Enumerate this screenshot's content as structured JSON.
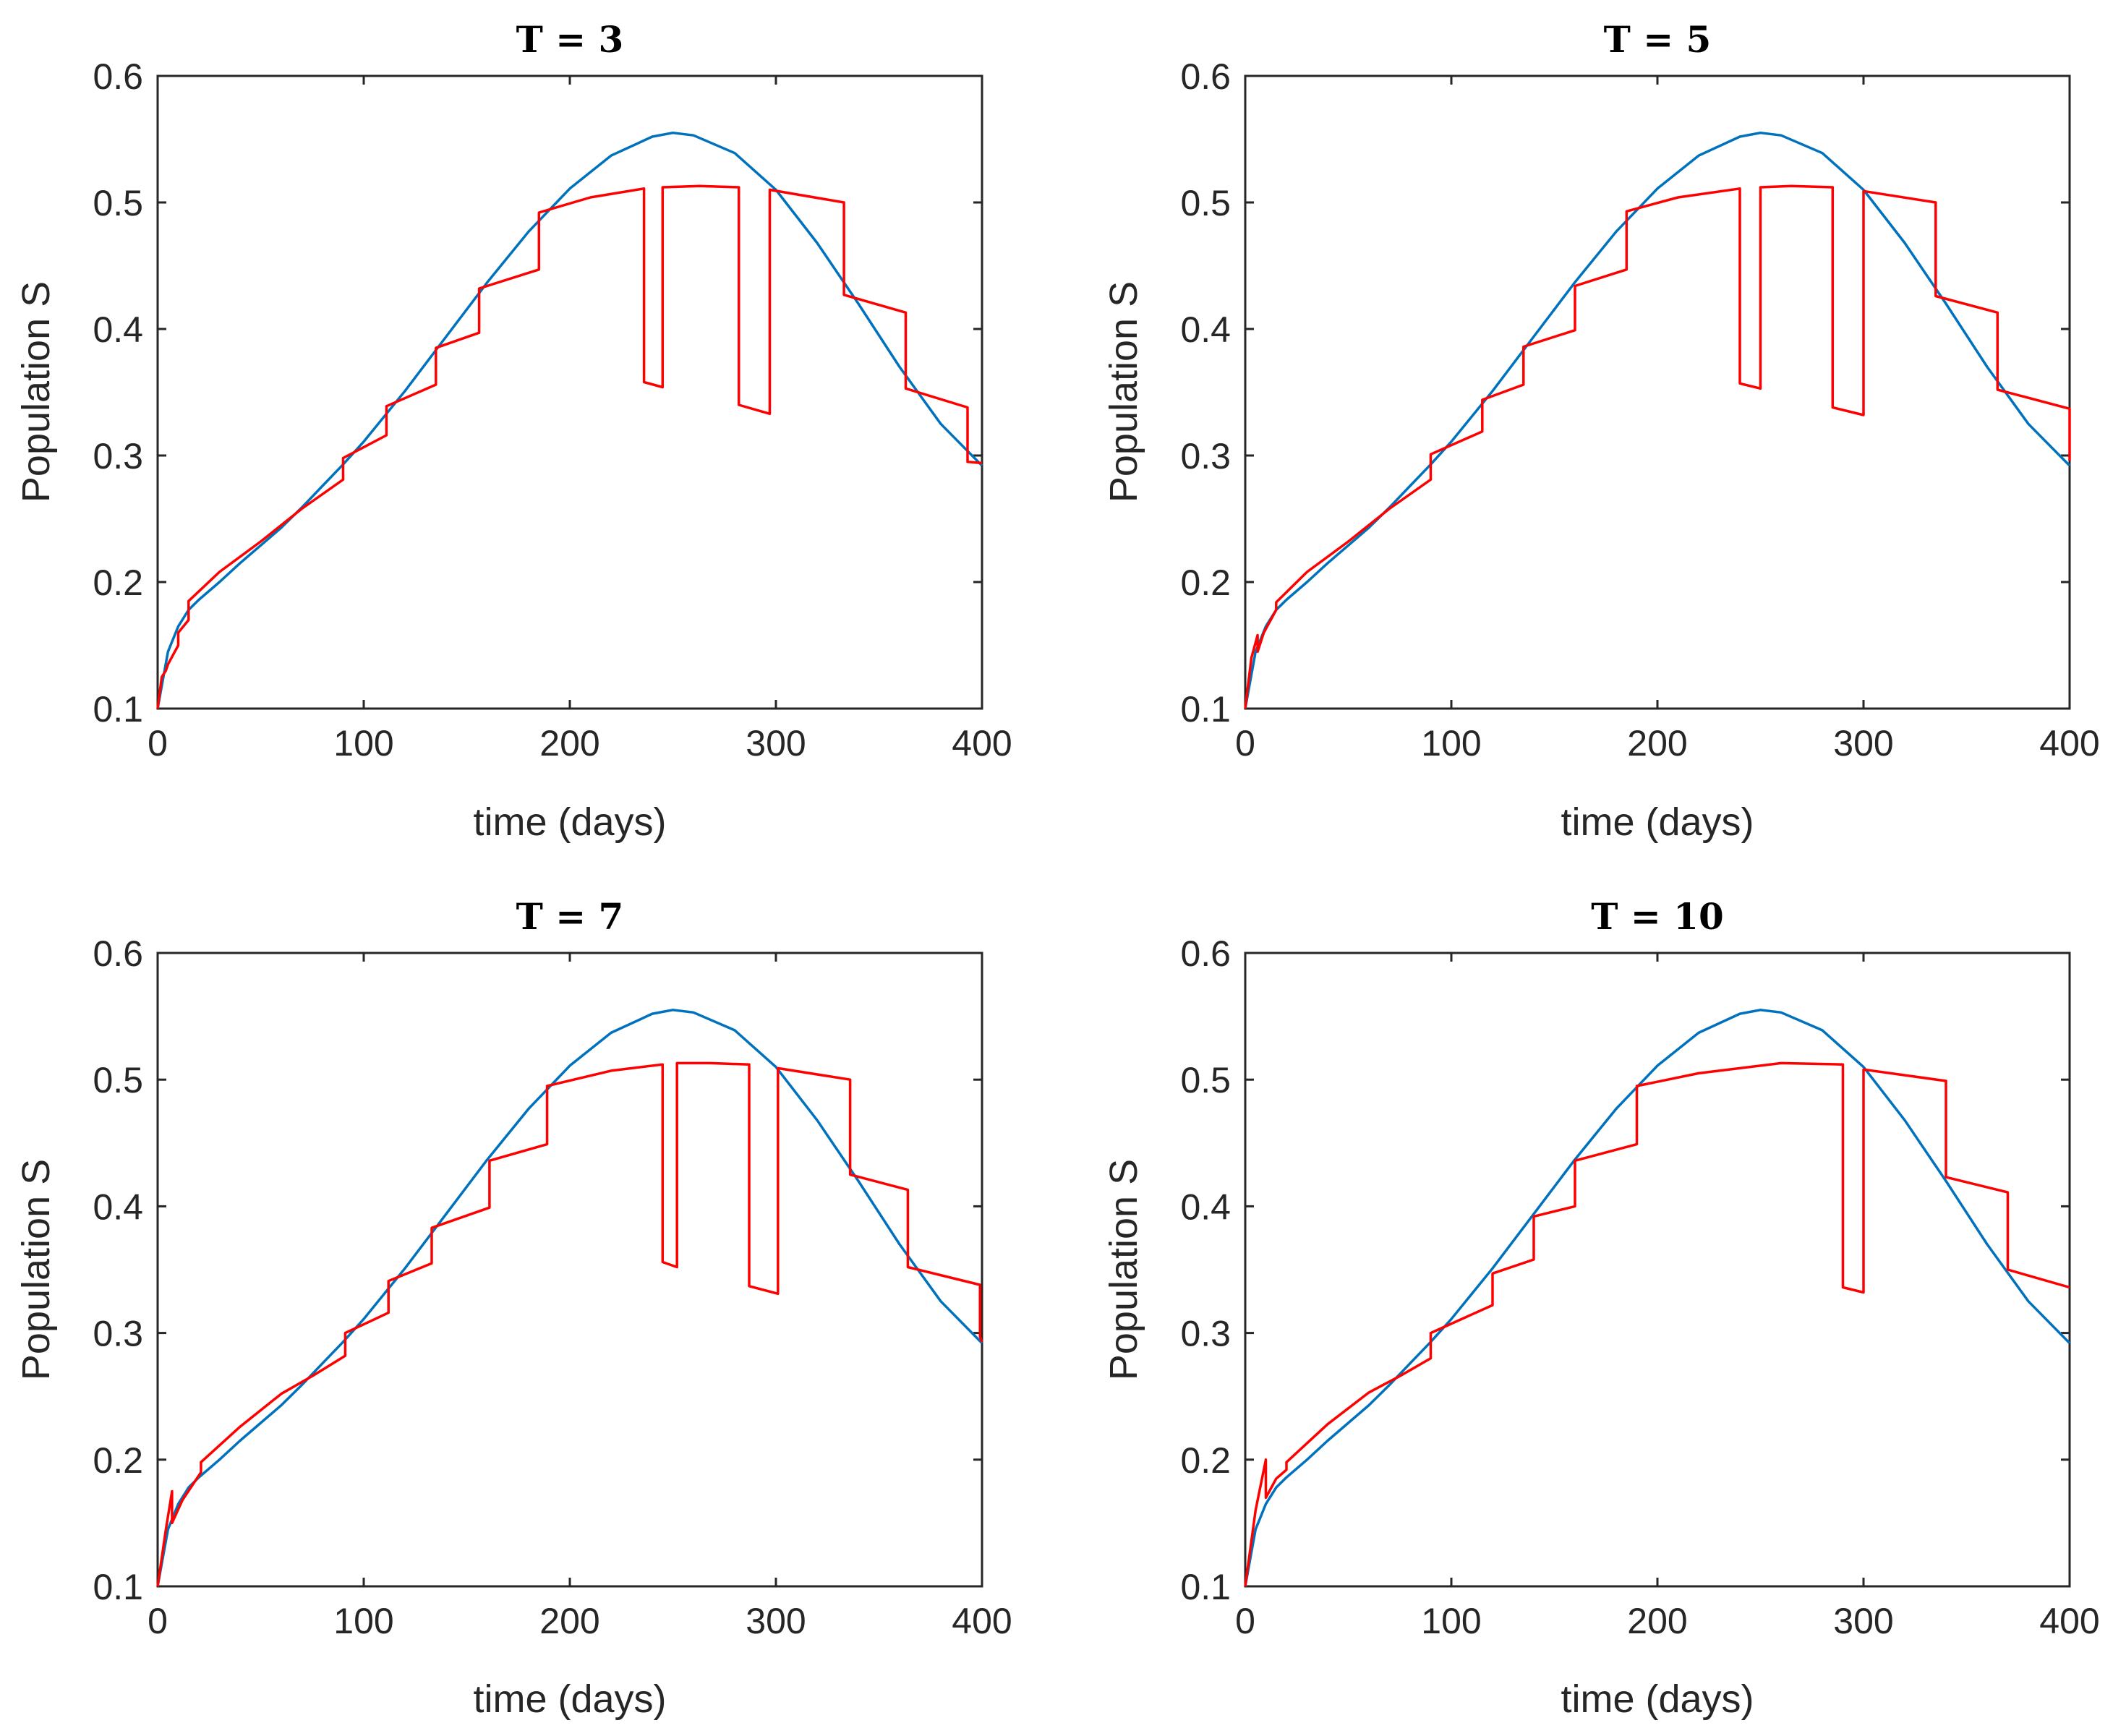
{
  "figure": {
    "colors": {
      "blue": "#0072BD",
      "red": "#FF0000",
      "axes": "#262626"
    }
  },
  "chart_data": [
    {
      "type": "line",
      "title": "T = 3",
      "xlabel": "time (days)",
      "ylabel": "Population S",
      "xlim": [
        0,
        400
      ],
      "ylim": [
        0.1,
        0.6
      ],
      "xticks": [
        "0",
        "100",
        "200",
        "300",
        "400"
      ],
      "yticks": [
        "0.1",
        "0.2",
        "0.3",
        "0.4",
        "0.5",
        "0.6"
      ],
      "grid": false,
      "series": [
        {
          "color": "#0072BD",
          "x": [
            0,
            5,
            10,
            15,
            20,
            30,
            40,
            50,
            60,
            70,
            80,
            90,
            100,
            120,
            140,
            160,
            180,
            200,
            220,
            240,
            250,
            260,
            280,
            300,
            320,
            340,
            360,
            380,
            400
          ],
          "y": [
            0.1,
            0.145,
            0.165,
            0.178,
            0.186,
            0.2,
            0.215,
            0.229,
            0.243,
            0.259,
            0.276,
            0.293,
            0.311,
            0.351,
            0.394,
            0.437,
            0.477,
            0.511,
            0.537,
            0.552,
            0.555,
            0.553,
            0.539,
            0.51,
            0.468,
            0.42,
            0.37,
            0.325,
            0.292
          ]
        },
        {
          "color": "#FF0000",
          "x": [
            0,
            2,
            4,
            5,
            5,
            10,
            10,
            15,
            15,
            30,
            50,
            70,
            90,
            90,
            111,
            111,
            135,
            135,
            156,
            156,
            185,
            185,
            210,
            236,
            236,
            245,
            245,
            263,
            282,
            282,
            297,
            297,
            333,
            333,
            363,
            363,
            393,
            393,
            400
          ],
          "y": [
            0.1,
            0.125,
            0.13,
            0.135,
            0.135,
            0.15,
            0.16,
            0.17,
            0.185,
            0.208,
            0.232,
            0.258,
            0.281,
            0.298,
            0.316,
            0.339,
            0.356,
            0.385,
            0.397,
            0.432,
            0.447,
            0.492,
            0.504,
            0.511,
            0.358,
            0.354,
            0.512,
            0.513,
            0.512,
            0.34,
            0.333,
            0.51,
            0.5,
            0.427,
            0.413,
            0.353,
            0.338,
            0.295,
            0.294
          ]
        }
      ]
    },
    {
      "type": "line",
      "title": "T = 5",
      "xlabel": "time (days)",
      "ylabel": "Population S",
      "xlim": [
        0,
        400
      ],
      "ylim": [
        0.1,
        0.6
      ],
      "xticks": [
        "0",
        "100",
        "200",
        "300",
        "400"
      ],
      "yticks": [
        "0.1",
        "0.2",
        "0.3",
        "0.4",
        "0.5",
        "0.6"
      ],
      "grid": false,
      "series": [
        {
          "color": "#0072BD",
          "x": [
            0,
            5,
            10,
            15,
            20,
            30,
            40,
            50,
            60,
            70,
            80,
            90,
            100,
            120,
            140,
            160,
            180,
            200,
            220,
            240,
            250,
            260,
            280,
            300,
            320,
            340,
            360,
            380,
            400
          ],
          "y": [
            0.1,
            0.145,
            0.165,
            0.178,
            0.186,
            0.2,
            0.215,
            0.229,
            0.243,
            0.259,
            0.276,
            0.293,
            0.311,
            0.351,
            0.394,
            0.437,
            0.477,
            0.511,
            0.537,
            0.552,
            0.555,
            0.553,
            0.539,
            0.51,
            0.468,
            0.42,
            0.37,
            0.325,
            0.292
          ]
        },
        {
          "color": "#FF0000",
          "x": [
            0,
            3,
            6,
            6,
            9,
            15,
            15,
            30,
            50,
            70,
            90,
            90,
            115,
            115,
            135,
            135,
            160,
            160,
            185,
            185,
            210,
            240,
            240,
            250,
            250,
            265,
            285,
            285,
            300,
            300,
            335,
            335,
            365,
            365,
            400,
            400
          ],
          "y": [
            0.1,
            0.14,
            0.158,
            0.145,
            0.16,
            0.178,
            0.184,
            0.208,
            0.232,
            0.258,
            0.281,
            0.301,
            0.319,
            0.344,
            0.356,
            0.386,
            0.399,
            0.434,
            0.447,
            0.493,
            0.504,
            0.511,
            0.357,
            0.353,
            0.512,
            0.513,
            0.512,
            0.338,
            0.332,
            0.509,
            0.5,
            0.426,
            0.413,
            0.352,
            0.337,
            0.296
          ]
        }
      ]
    },
    {
      "type": "line",
      "title": "T = 7",
      "xlabel": "time (days)",
      "ylabel": "Population S",
      "xlim": [
        0,
        400
      ],
      "ylim": [
        0.1,
        0.6
      ],
      "xticks": [
        "0",
        "100",
        "200",
        "300",
        "400"
      ],
      "yticks": [
        "0.1",
        "0.2",
        "0.3",
        "0.4",
        "0.5",
        "0.6"
      ],
      "grid": false,
      "series": [
        {
          "color": "#0072BD",
          "x": [
            0,
            5,
            10,
            15,
            20,
            30,
            40,
            50,
            60,
            70,
            80,
            90,
            100,
            120,
            140,
            160,
            180,
            200,
            220,
            240,
            250,
            260,
            280,
            300,
            320,
            340,
            360,
            380,
            400
          ],
          "y": [
            0.1,
            0.145,
            0.165,
            0.178,
            0.186,
            0.2,
            0.215,
            0.229,
            0.243,
            0.259,
            0.276,
            0.293,
            0.311,
            0.351,
            0.394,
            0.437,
            0.477,
            0.511,
            0.537,
            0.552,
            0.555,
            0.553,
            0.539,
            0.51,
            0.468,
            0.42,
            0.37,
            0.325,
            0.292
          ]
        },
        {
          "color": "#FF0000",
          "x": [
            0,
            4,
            7,
            7,
            12,
            21,
            21,
            40,
            60,
            75,
            91,
            91,
            112,
            112,
            133,
            133,
            161,
            161,
            189,
            189,
            220,
            245,
            245,
            252,
            252,
            268,
            287,
            287,
            301,
            301,
            336,
            336,
            364,
            364,
            399,
            399,
            400
          ],
          "y": [
            0.1,
            0.145,
            0.175,
            0.15,
            0.168,
            0.19,
            0.198,
            0.226,
            0.252,
            0.266,
            0.282,
            0.3,
            0.316,
            0.341,
            0.355,
            0.383,
            0.399,
            0.436,
            0.449,
            0.495,
            0.507,
            0.512,
            0.356,
            0.352,
            0.513,
            0.513,
            0.512,
            0.337,
            0.331,
            0.509,
            0.5,
            0.425,
            0.413,
            0.352,
            0.338,
            0.297,
            0.293
          ]
        }
      ]
    },
    {
      "type": "line",
      "title": "T = 10",
      "xlabel": "time (days)",
      "ylabel": "Population S",
      "xlim": [
        0,
        400
      ],
      "ylim": [
        0.1,
        0.6
      ],
      "xticks": [
        "0",
        "100",
        "200",
        "300",
        "400"
      ],
      "yticks": [
        "0.1",
        "0.2",
        "0.3",
        "0.4",
        "0.5",
        "0.6"
      ],
      "grid": false,
      "series": [
        {
          "color": "#0072BD",
          "x": [
            0,
            5,
            10,
            15,
            20,
            30,
            40,
            50,
            60,
            70,
            80,
            90,
            100,
            120,
            140,
            160,
            180,
            200,
            220,
            240,
            250,
            260,
            280,
            300,
            320,
            340,
            360,
            380,
            400
          ],
          "y": [
            0.1,
            0.145,
            0.165,
            0.178,
            0.186,
            0.2,
            0.215,
            0.229,
            0.243,
            0.259,
            0.276,
            0.293,
            0.311,
            0.351,
            0.394,
            0.437,
            0.477,
            0.511,
            0.537,
            0.552,
            0.555,
            0.553,
            0.539,
            0.51,
            0.468,
            0.42,
            0.37,
            0.325,
            0.292
          ]
        },
        {
          "color": "#FF0000",
          "x": [
            0,
            5,
            10,
            10,
            15,
            20,
            20,
            40,
            60,
            75,
            90,
            90,
            120,
            120,
            140,
            140,
            160,
            160,
            190,
            190,
            220,
            260,
            290,
            290,
            300,
            300,
            340,
            340,
            370,
            370,
            400
          ],
          "y": [
            0.1,
            0.16,
            0.2,
            0.17,
            0.185,
            0.192,
            0.198,
            0.228,
            0.253,
            0.266,
            0.28,
            0.3,
            0.322,
            0.347,
            0.358,
            0.392,
            0.4,
            0.436,
            0.449,
            0.495,
            0.505,
            0.513,
            0.512,
            0.336,
            0.332,
            0.508,
            0.499,
            0.423,
            0.411,
            0.35,
            0.336
          ]
        }
      ]
    }
  ]
}
